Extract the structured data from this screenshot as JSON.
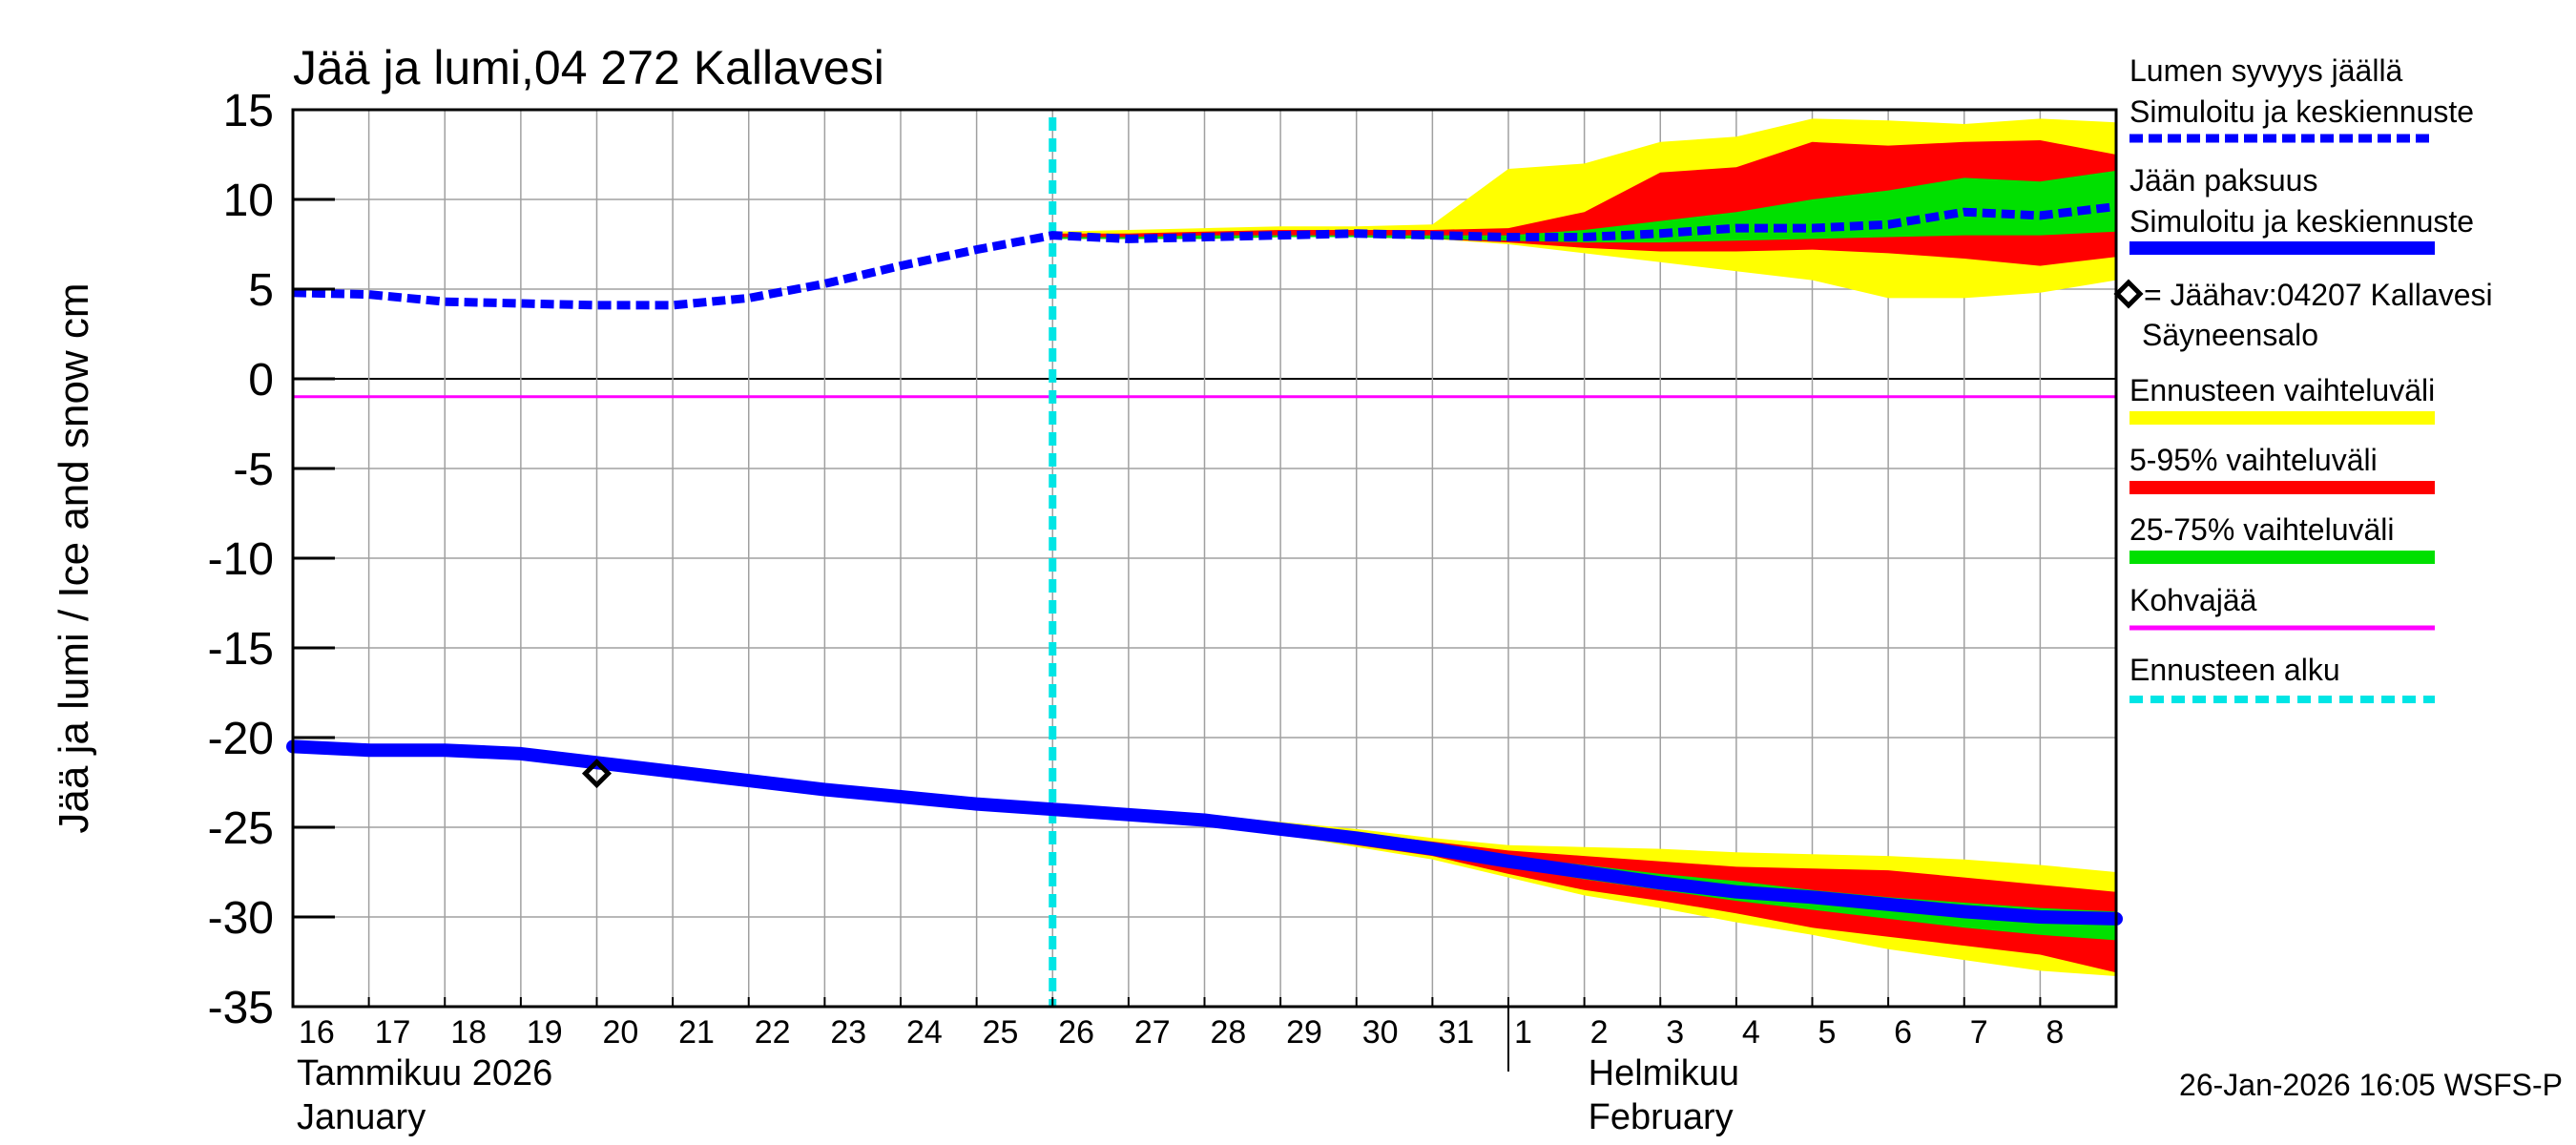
{
  "chart_data": {
    "type": "line",
    "title": "Jää ja lumi,04 272 Kallavesi",
    "ylabel": "Jää ja lumi / Ice and snow    cm",
    "ylim": [
      -35,
      15
    ],
    "yticks": [
      15,
      10,
      5,
      0,
      -5,
      -10,
      -15,
      -20,
      -25,
      -30,
      -35
    ],
    "xlim": [
      0,
      24
    ],
    "day_labels": [
      "16",
      "17",
      "18",
      "19",
      "20",
      "21",
      "22",
      "23",
      "24",
      "25",
      "26",
      "27",
      "28",
      "29",
      "30",
      "31",
      "1",
      "2",
      "3",
      "4",
      "5",
      "6",
      "7",
      "8"
    ],
    "months": [
      {
        "fi": "Tammikuu  2026",
        "en": "January",
        "x": 0
      },
      {
        "fi": "Helmikuu",
        "en": "February",
        "x": 17
      }
    ],
    "month_divider_x": 16,
    "forecast_start": 10,
    "kohvajaa": -1,
    "snow": {
      "name": "Lumen syvyys jäällä Simuloitu ja keskiennuste",
      "x": [
        0,
        1,
        2,
        3,
        4,
        5,
        6,
        7,
        8,
        9,
        10,
        11,
        12,
        13,
        14,
        15,
        16,
        17,
        18,
        19,
        20,
        21,
        22,
        23,
        24
      ],
      "y": [
        4.8,
        4.7,
        4.3,
        4.2,
        4.1,
        4.1,
        4.5,
        5.3,
        6.3,
        7.2,
        8.0,
        7.8,
        7.9,
        8.0,
        8.1,
        8.0,
        7.9,
        7.9,
        8.1,
        8.4,
        8.4,
        8.6,
        9.3,
        9.1,
        9.6
      ],
      "bands": {
        "x": [
          10,
          11,
          12,
          13,
          14,
          15,
          16,
          17,
          18,
          19,
          20,
          21,
          22,
          23,
          24
        ],
        "p0": [
          7.8,
          7.8,
          7.8,
          7.9,
          7.9,
          7.8,
          7.5,
          7.0,
          6.5,
          6.0,
          5.5,
          4.5,
          4.5,
          4.8,
          5.5
        ],
        "p5": [
          7.8,
          7.8,
          7.8,
          7.9,
          7.9,
          7.8,
          7.6,
          7.3,
          7.1,
          7.1,
          7.2,
          7.0,
          6.7,
          6.3,
          6.8
        ],
        "p25": [
          7.8,
          7.8,
          7.8,
          7.9,
          7.9,
          7.8,
          7.7,
          7.6,
          7.6,
          7.7,
          7.8,
          7.9,
          8.0,
          8.0,
          8.2
        ],
        "p75": [
          7.9,
          7.9,
          8.0,
          8.0,
          8.0,
          8.0,
          8.0,
          8.3,
          8.8,
          9.3,
          10.0,
          10.5,
          11.2,
          11.0,
          11.6
        ],
        "p95": [
          8.1,
          8.1,
          8.2,
          8.3,
          8.3,
          8.3,
          8.4,
          9.3,
          11.5,
          11.8,
          13.2,
          13.0,
          13.2,
          13.3,
          12.5
        ],
        "p100": [
          8.2,
          8.3,
          8.4,
          8.5,
          8.5,
          8.6,
          11.7,
          12.0,
          13.2,
          13.5,
          14.5,
          14.4,
          14.2,
          14.5,
          14.3
        ]
      }
    },
    "ice": {
      "name": "Jään paksuus Simuloitu ja keskiennuste",
      "x": [
        0,
        1,
        2,
        3,
        4,
        5,
        6,
        7,
        8,
        9,
        10,
        11,
        12,
        13,
        14,
        15,
        16,
        17,
        18,
        19,
        20,
        21,
        22,
        23,
        24
      ],
      "y": [
        -20.5,
        -20.7,
        -20.7,
        -20.9,
        -21.4,
        -21.9,
        -22.4,
        -22.9,
        -23.3,
        -23.7,
        -24.0,
        -24.3,
        -24.6,
        -25.1,
        -25.6,
        -26.2,
        -26.9,
        -27.5,
        -28.1,
        -28.6,
        -28.9,
        -29.3,
        -29.7,
        -30.0,
        -30.1
      ],
      "bands": {
        "x": [
          10,
          11,
          12,
          13,
          14,
          15,
          16,
          17,
          18,
          19,
          20,
          21,
          22,
          23,
          24
        ],
        "p0": [
          -24.0,
          -24.4,
          -24.8,
          -25.4,
          -26.1,
          -26.8,
          -27.8,
          -28.8,
          -29.5,
          -30.3,
          -31.0,
          -31.8,
          -32.4,
          -33.0,
          -33.3
        ],
        "p5": [
          -24.0,
          -24.4,
          -24.8,
          -25.3,
          -26.0,
          -26.6,
          -27.6,
          -28.5,
          -29.1,
          -29.8,
          -30.6,
          -31.1,
          -31.6,
          -32.1,
          -33.1
        ],
        "p25": [
          -24.0,
          -24.3,
          -24.6,
          -25.2,
          -25.8,
          -26.4,
          -27.2,
          -27.9,
          -28.5,
          -29.1,
          -29.6,
          -30.1,
          -30.6,
          -31.0,
          -31.3
        ],
        "p75": [
          -24.0,
          -24.3,
          -24.5,
          -25.0,
          -25.5,
          -26.0,
          -26.6,
          -27.1,
          -27.6,
          -28.0,
          -28.5,
          -28.9,
          -29.2,
          -29.5,
          -29.7
        ],
        "p95": [
          -24.0,
          -24.2,
          -24.4,
          -24.8,
          -25.3,
          -25.8,
          -26.3,
          -26.6,
          -26.9,
          -27.2,
          -27.3,
          -27.4,
          -27.8,
          -28.2,
          -28.6
        ],
        "p100": [
          -24.0,
          -24.2,
          -24.3,
          -24.7,
          -25.1,
          -25.6,
          -26.0,
          -26.1,
          -26.2,
          -26.4,
          -26.5,
          -26.6,
          -26.8,
          -27.1,
          -27.5
        ]
      }
    },
    "observation": {
      "name": "Jäähav:04207 Kallavesi Säyneensalo",
      "x": 4,
      "y": -22
    }
  },
  "legend": {
    "snow_line1": "Lumen syvyys jäällä",
    "snow_line2": "Simuloitu ja keskiennuste",
    "ice_line1": "Jään paksuus",
    "ice_line2": "Simuloitu ja keskiennuste",
    "obs_line1": "= Jäähav:04207 Kallavesi",
    "obs_line2": "Säyneensalo",
    "range_all": "Ennusteen vaihteluväli",
    "range_5_95": "5-95% vaihteluväli",
    "range_25_75": "25-75% vaihteluväli",
    "kohvajaa": "Kohvajää",
    "forecast_start": "Ennusteen alku"
  },
  "footer": "26-Jan-2026 16:05 WSFS-P",
  "colors": {
    "band_all": "#ffff00",
    "band_5_95": "#ff0000",
    "band_25_75": "#00e000",
    "main_line": "#0000ff",
    "kohvajaa": "#ff00ff",
    "forecast_start": "#00e5e5",
    "grid": "#a0a0a0"
  }
}
